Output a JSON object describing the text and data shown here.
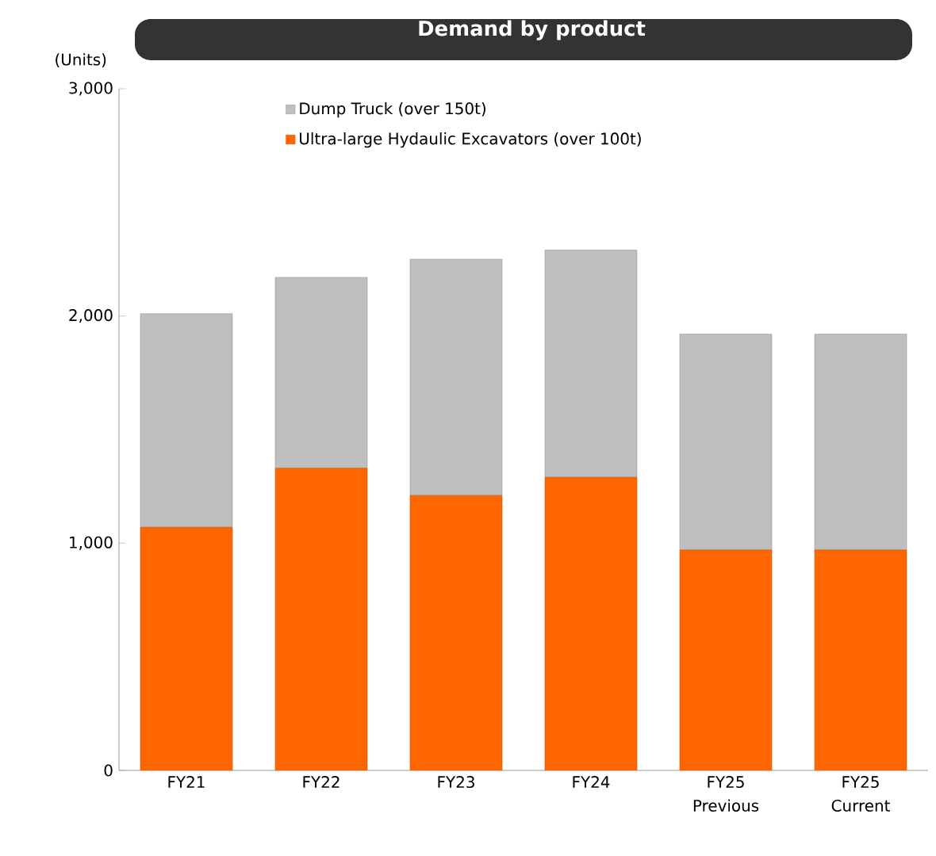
{
  "chart_data": {
    "type": "bar",
    "stacked": true,
    "title": "Demand by product",
    "ylabel": "(Units)",
    "categories": [
      "FY21",
      "FY22",
      "FY23",
      "FY24",
      "FY25 Previous",
      "FY25 Current"
    ],
    "series": [
      {
        "name": "Ultra-large Hydaulic Excavators (over 100t)",
        "color": "#ff6600",
        "values": [
          1070,
          1330,
          1210,
          1290,
          970,
          970
        ]
      },
      {
        "name": "Dump Truck (over 150t)",
        "color": "#bfbfbf",
        "values": [
          940,
          840,
          1040,
          1000,
          950,
          950
        ]
      }
    ],
    "ylim": [
      0,
      3000
    ],
    "yticks": [
      {
        "value": 0,
        "label": "0"
      },
      {
        "value": 1000,
        "label": "1,000"
      },
      {
        "value": 2000,
        "label": "2,000"
      },
      {
        "value": 3000,
        "label": "3,000"
      }
    ],
    "legend": "top",
    "grid": false
  }
}
